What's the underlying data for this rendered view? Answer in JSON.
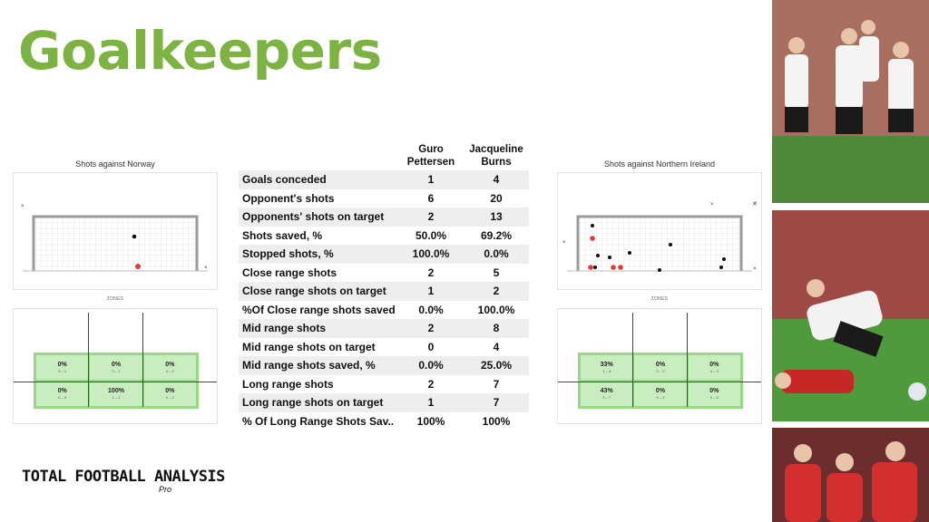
{
  "title": "Goalkeepers",
  "left_panel": {
    "caption": "Shots against Norway",
    "zones_label": "ZONES",
    "zones": [
      {
        "pct": "0%",
        "ratio": "0 – 1"
      },
      {
        "pct": "0%",
        "ratio": "0 – 1"
      },
      {
        "pct": "0%",
        "ratio": "0 – 0"
      },
      {
        "pct": "0%",
        "ratio": "0 – 0"
      },
      {
        "pct": "100%",
        "ratio": "1 – 1"
      },
      {
        "pct": "0%",
        "ratio": "0 – 2"
      }
    ]
  },
  "right_panel": {
    "caption": "Shots against Northern Ireland",
    "zones_label": "ZONES",
    "zones": [
      {
        "pct": "33%",
        "ratio": "1 – 3"
      },
      {
        "pct": "0%",
        "ratio": "0 – 0"
      },
      {
        "pct": "0%",
        "ratio": "0 – 3"
      },
      {
        "pct": "43%",
        "ratio": "3 – 7"
      },
      {
        "pct": "0%",
        "ratio": "0 – 2"
      },
      {
        "pct": "0%",
        "ratio": "0 – 3"
      }
    ]
  },
  "table": {
    "col1": "Guro Pettersen",
    "col2": "Jacqueline Burns",
    "rows": [
      {
        "label": "Goals conceded",
        "a": "1",
        "b": "4"
      },
      {
        "label": "Opponent's shots",
        "a": "6",
        "b": "20"
      },
      {
        "label": "Opponents' shots  on target",
        "a": "2",
        "b": "13"
      },
      {
        "label": "Shots saved, %",
        "a": "50.0%",
        "b": "69.2%"
      },
      {
        "label": "Stopped shots, %",
        "a": "100.0%",
        "b": "0.0%"
      },
      {
        "label": "Close range shots",
        "a": "2",
        "b": "5"
      },
      {
        "label": "Close range shots on target",
        "a": "1",
        "b": "2"
      },
      {
        "label": "%Of Close range shots saved",
        "a": "0.0%",
        "b": "100.0%"
      },
      {
        "label": "Mid range shots",
        "a": "2",
        "b": "8"
      },
      {
        "label": "Mid range shots on target",
        "a": "0",
        "b": "4"
      },
      {
        "label": "Mid range shots saved, %",
        "a": "0.0%",
        "b": "25.0%"
      },
      {
        "label": "Long range shots",
        "a": "2",
        "b": "7"
      },
      {
        "label": "Long range shots on target",
        "a": "1",
        "b": "7"
      },
      {
        "label": "% Of Long Range Shots Sav..",
        "a": "100%",
        "b": "100%"
      }
    ]
  },
  "logo": {
    "main": "TOTAL FOOTBALL ANALYSIS",
    "sub": "Pro"
  },
  "colors": {
    "title": "#7cb342",
    "zone_fill": "#c9ecc0",
    "goal_shot": "#e53935",
    "saved_shot": "#111111"
  }
}
